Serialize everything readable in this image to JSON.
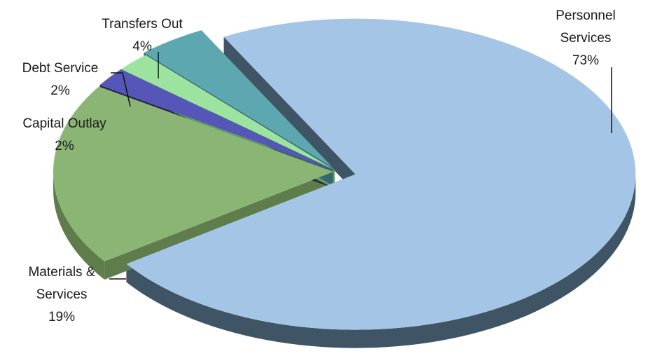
{
  "chart_data": {
    "type": "pie",
    "style": "3d-exploded",
    "title": "",
    "slices": [
      {
        "label": "Personnel Services",
        "label_lines": [
          "Personnel",
          "Services"
        ],
        "value": 73,
        "percent_text": "73%",
        "color": "#a4c5e6",
        "side_color": "#3f5566"
      },
      {
        "label": "Materials & Services",
        "label_lines": [
          "Materials &",
          "Services"
        ],
        "value": 19,
        "percent_text": "19%",
        "color": "#8ab574",
        "side_color": "#5e7d4a"
      },
      {
        "label": "Capital Outlay",
        "label_lines": [
          "Capital Outlay"
        ],
        "value": 2,
        "percent_text": "2%",
        "color": "#5656b8",
        "side_color": "#26264f"
      },
      {
        "label": "Debt Service",
        "label_lines": [
          "Debt Service"
        ],
        "value": 2,
        "percent_text": "2%",
        "color": "#9be39e",
        "side_color": "#5f9e62"
      },
      {
        "label": "Transfers Out",
        "label_lines": [
          "Transfers Out"
        ],
        "value": 4,
        "percent_text": "4%",
        "color": "#5da7b1",
        "side_color": "#36676e"
      }
    ],
    "legend": "none"
  }
}
